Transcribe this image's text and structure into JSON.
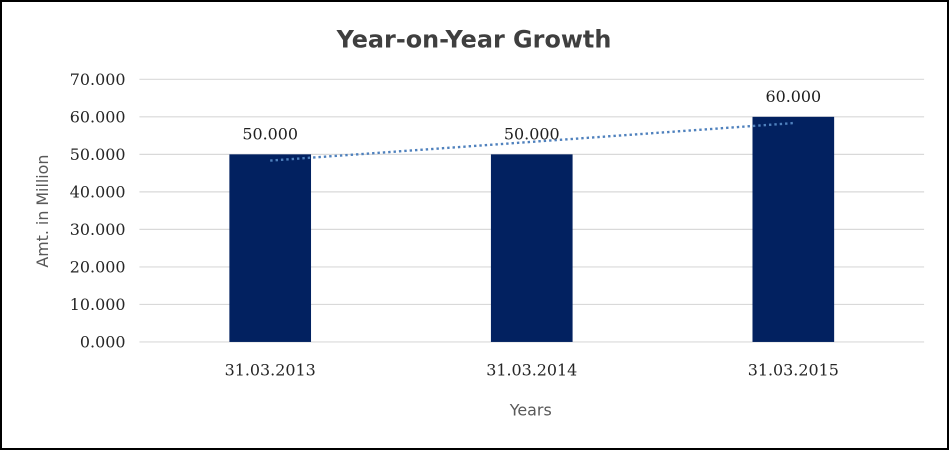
{
  "window": {
    "background_color": "#ffffff",
    "border_color": "#000000"
  },
  "chart_data": {
    "type": "bar",
    "title": "Year-on-Year Growth",
    "xlabel": "Years",
    "ylabel": "Amt. in Million",
    "categories": [
      "31.03.2013",
      "31.03.2014",
      "31.03.2015"
    ],
    "values": [
      50000,
      50000,
      60000
    ],
    "data_labels": [
      "50.000",
      "50.000",
      "60.000"
    ],
    "ylim": [
      0,
      70000
    ],
    "ytick_values": [
      0,
      10000,
      20000,
      30000,
      40000,
      50000,
      60000,
      70000
    ],
    "ytick_labels": [
      "0.000",
      "10.000",
      "20.000",
      "30.000",
      "40.000",
      "50.000",
      "60.000",
      "70.000"
    ],
    "grid": "horizontal",
    "legend": "none",
    "trendline": {
      "type": "linear",
      "style": "dotted",
      "values_at_categories": [
        48333,
        53333,
        58333
      ],
      "color": "#4f81bd"
    },
    "colors": {
      "bar": "#022160",
      "gridline": "#d9d9d9",
      "axis_line": "#d9d9d9",
      "title_text": "#3f3f3f",
      "tick_text": "#262626",
      "category_text": "#262626",
      "data_label_text": "#1f1f1f",
      "axis_title_text": "#595959"
    }
  }
}
